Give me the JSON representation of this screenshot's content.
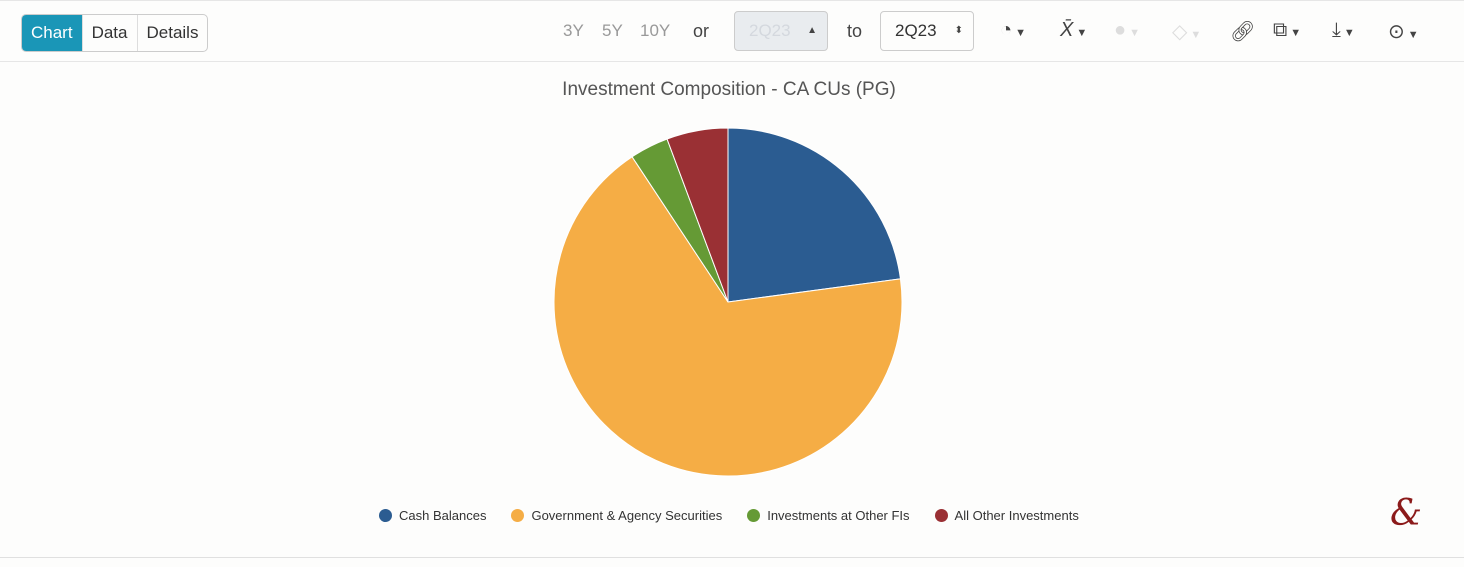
{
  "tabs": [
    "Chart",
    "Data",
    "Details"
  ],
  "active_tab": "Chart",
  "ranges": [
    "3Y",
    "5Y",
    "10Y"
  ],
  "or_label": "or",
  "from_value": "2Q23",
  "to_label": "to",
  "to_value": "2Q23",
  "toolbar_icons": [
    "pie-chart-icon",
    "mean-x-bar-icon",
    "circle-icon",
    "tag-icon",
    "link-icon",
    "presentation-icon",
    "download-icon",
    "more-icon"
  ],
  "logo_text": "&",
  "chart_data": {
    "type": "pie",
    "title": "Investment Composition - CA CUs (PG)",
    "legend_position": "bottom",
    "slices": [
      {
        "name": "Cash Balances",
        "value": 22.9,
        "color": "#2b5c91"
      },
      {
        "name": "Government & Agency Securities",
        "value": 67.9,
        "color": "#f5ad45"
      },
      {
        "name": "Investments at Other FIs",
        "value": 3.6,
        "color": "#659a35"
      },
      {
        "name": "All Other Investments",
        "value": 5.7,
        "color": "#9a3034"
      }
    ]
  }
}
